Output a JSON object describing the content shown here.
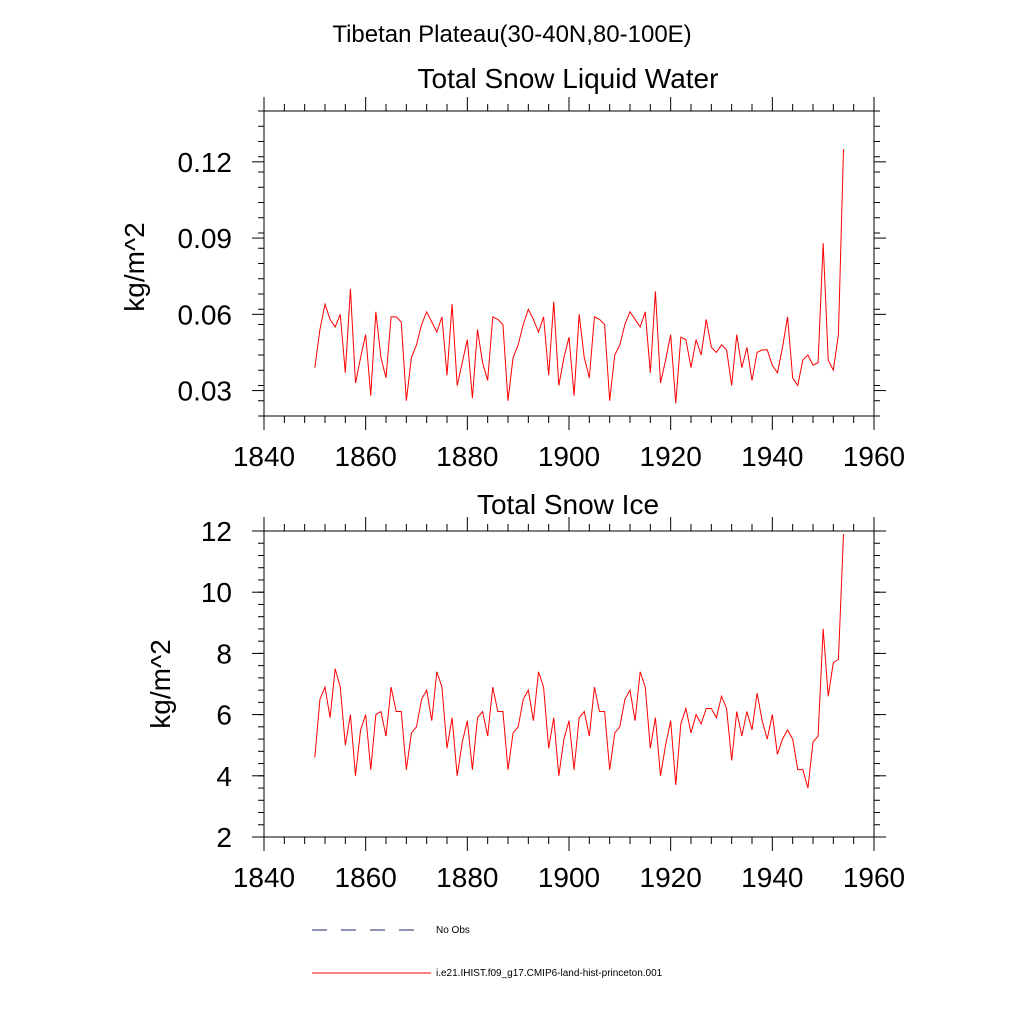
{
  "figure": {
    "title": "Tibetan Plateau(30-40N,80-100E)"
  },
  "legend": {
    "placement": "bottom",
    "entries": [
      {
        "label": "No Obs",
        "style": "dashed",
        "color": "#1f2a6e"
      },
      {
        "label": "i.e21.IHIST.f09_g17.CMIP6-land-hist-princeton.001",
        "style": "solid",
        "color": "#ff0000"
      }
    ]
  },
  "chart_data": [
    {
      "type": "line",
      "title": "Total Snow Liquid Water",
      "xlabel": "",
      "ylabel": "kg/m^2",
      "xlim": [
        1840,
        1960
      ],
      "ylim": [
        0.02,
        0.14
      ],
      "xticks": [
        1840,
        1860,
        1880,
        1900,
        1920,
        1940,
        1960
      ],
      "yticks": [
        0.03,
        0.06,
        0.09,
        0.12
      ],
      "ytick_labels": [
        "0.03",
        "0.06",
        "0.09",
        "0.12"
      ],
      "grid": false,
      "series": [
        {
          "color": "#ff0000",
          "x_start": 1850,
          "x_step": 1,
          "values": [
            0.039,
            0.054,
            0.064,
            0.058,
            0.055,
            0.06,
            0.037,
            0.07,
            0.033,
            0.043,
            0.052,
            0.028,
            0.061,
            0.043,
            0.035,
            0.059,
            0.059,
            0.057,
            0.026,
            0.043,
            0.048,
            0.056,
            0.061,
            0.057,
            0.053,
            0.059,
            0.036,
            0.064,
            0.032,
            0.041,
            0.05,
            0.027,
            0.054,
            0.041,
            0.034,
            0.059,
            0.058,
            0.056,
            0.026,
            0.043,
            0.048,
            0.056,
            0.062,
            0.058,
            0.053,
            0.059,
            0.036,
            0.065,
            0.032,
            0.043,
            0.051,
            0.028,
            0.06,
            0.043,
            0.035,
            0.059,
            0.058,
            0.056,
            0.026,
            0.044,
            0.048,
            0.056,
            0.061,
            0.058,
            0.055,
            0.061,
            0.037,
            0.069,
            0.033,
            0.042,
            0.052,
            0.025,
            0.051,
            0.05,
            0.039,
            0.05,
            0.044,
            0.058,
            0.047,
            0.045,
            0.048,
            0.046,
            0.032,
            0.052,
            0.039,
            0.047,
            0.034,
            0.045,
            0.046,
            0.046,
            0.04,
            0.037,
            0.047,
            0.059,
            0.035,
            0.032,
            0.042,
            0.044,
            0.04,
            0.041,
            0.088,
            0.042,
            0.038,
            0.052,
            0.125
          ]
        }
      ]
    },
    {
      "type": "line",
      "title": "Total Snow Ice",
      "xlabel": "",
      "ylabel": "kg/m^2",
      "xlim": [
        1840,
        1960
      ],
      "ylim": [
        2,
        12
      ],
      "xticks": [
        1840,
        1860,
        1880,
        1900,
        1920,
        1940,
        1960
      ],
      "yticks": [
        2,
        4,
        6,
        8,
        10,
        12
      ],
      "ytick_labels": [
        "2",
        "4",
        "6",
        "8",
        "10",
        "12"
      ],
      "grid": false,
      "series": [
        {
          "color": "#ff0000",
          "x_start": 1850,
          "x_step": 1,
          "values": [
            4.6,
            6.5,
            6.9,
            5.9,
            7.5,
            6.9,
            5.0,
            6.0,
            4.0,
            5.5,
            6.0,
            4.2,
            6.0,
            6.1,
            5.3,
            6.9,
            6.1,
            6.1,
            4.2,
            5.4,
            5.6,
            6.5,
            6.8,
            5.8,
            7.4,
            6.9,
            4.9,
            5.9,
            4.0,
            5.1,
            5.8,
            4.2,
            5.9,
            6.1,
            5.3,
            6.9,
            6.1,
            6.1,
            4.2,
            5.4,
            5.6,
            6.5,
            6.8,
            5.8,
            7.4,
            6.9,
            4.9,
            5.9,
            4.0,
            5.2,
            5.8,
            4.2,
            5.9,
            6.1,
            5.3,
            6.9,
            6.1,
            6.1,
            4.2,
            5.4,
            5.6,
            6.5,
            6.8,
            5.8,
            7.4,
            6.9,
            4.9,
            5.9,
            4.0,
            5.0,
            5.8,
            3.7,
            5.7,
            6.2,
            5.4,
            6.0,
            5.7,
            6.2,
            6.2,
            5.9,
            6.6,
            6.2,
            4.5,
            6.1,
            5.3,
            6.1,
            5.5,
            6.7,
            5.8,
            5.2,
            6.0,
            4.7,
            5.2,
            5.5,
            5.2,
            4.2,
            4.2,
            3.6,
            5.1,
            5.3,
            8.8,
            6.6,
            7.7,
            7.8,
            11.9
          ]
        }
      ]
    }
  ]
}
